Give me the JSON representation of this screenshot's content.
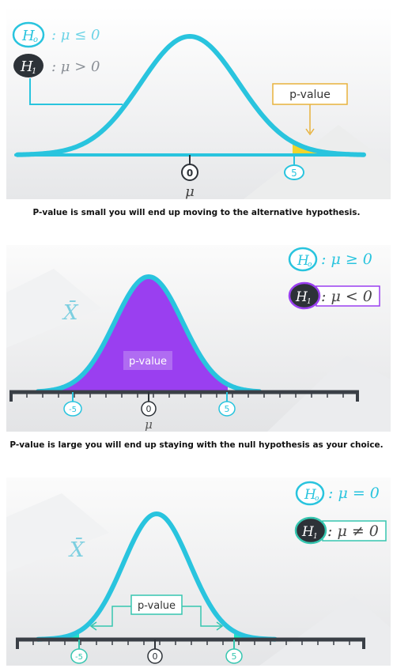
{
  "colors": {
    "curve": "#29c4de",
    "dark": "#2d3238",
    "yellow": "#f2d52c",
    "purple": "#9a3ff0",
    "teal": "#1de8c2",
    "box_gold": "#e8b23c",
    "box_teal": "#36c6b0"
  },
  "panels": [
    {
      "h0_symbol": "H",
      "h0_sub": "o",
      "h0_condition": ": μ ≤ 0",
      "h1_symbol": "H",
      "h1_sub": "1",
      "h1_condition": ": μ > 0",
      "pvalue_label": "p-value",
      "ticks": [
        "0",
        "5"
      ],
      "axis_symbol": "μ",
      "caption": "P-value is small you will end up moving to the alternative hypothesis."
    },
    {
      "h0_symbol": "H",
      "h0_sub": "o",
      "h0_condition": ": μ ≥ 0",
      "h1_symbol": "H",
      "h1_sub": "1",
      "h1_condition": ": μ < 0",
      "xbar_symbol": "X̄",
      "pvalue_label": "p-value",
      "ticks": [
        "-5",
        "0",
        "5"
      ],
      "axis_symbol": "μ",
      "caption": "P-value is large you will end up staying with the null hypothesis as your choice."
    },
    {
      "h0_symbol": "H",
      "h0_sub": "o",
      "h0_condition": ": μ = 0",
      "h1_symbol": "H",
      "h1_sub": "1",
      "h1_condition": ": μ ≠ 0",
      "xbar_symbol": "X̄",
      "pvalue_label": "p-value",
      "ticks": [
        "-5",
        "0",
        "5"
      ]
    }
  ]
}
